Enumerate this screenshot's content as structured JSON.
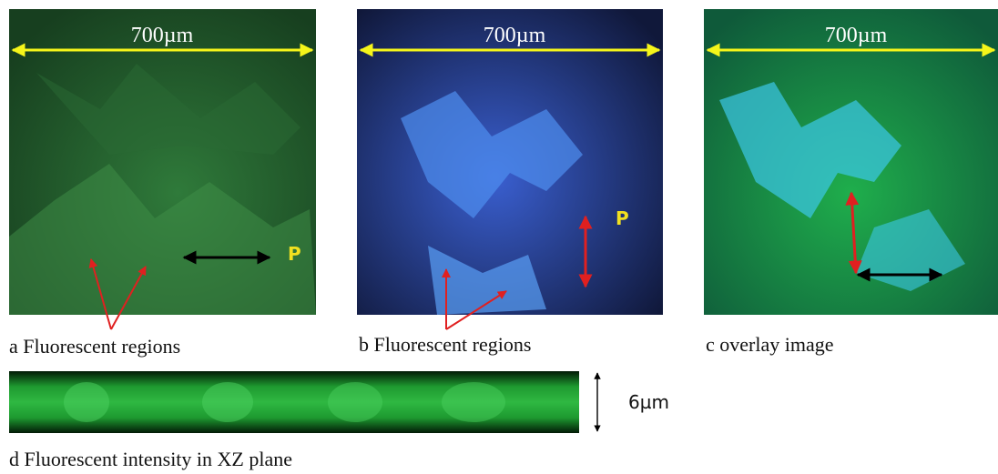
{
  "panels": [
    {
      "scale_label": "700µm",
      "polarization_label": "P",
      "caption": "a Fluorescent regions"
    },
    {
      "scale_label": "700µm",
      "polarization_label": "P",
      "caption": "b  Fluorescent regions"
    },
    {
      "scale_label": "700µm",
      "caption": "c overlay image"
    }
  ],
  "xz_panel": {
    "thickness_label": "6µm",
    "caption": "d Fluorescent intensity in XZ plane"
  }
}
